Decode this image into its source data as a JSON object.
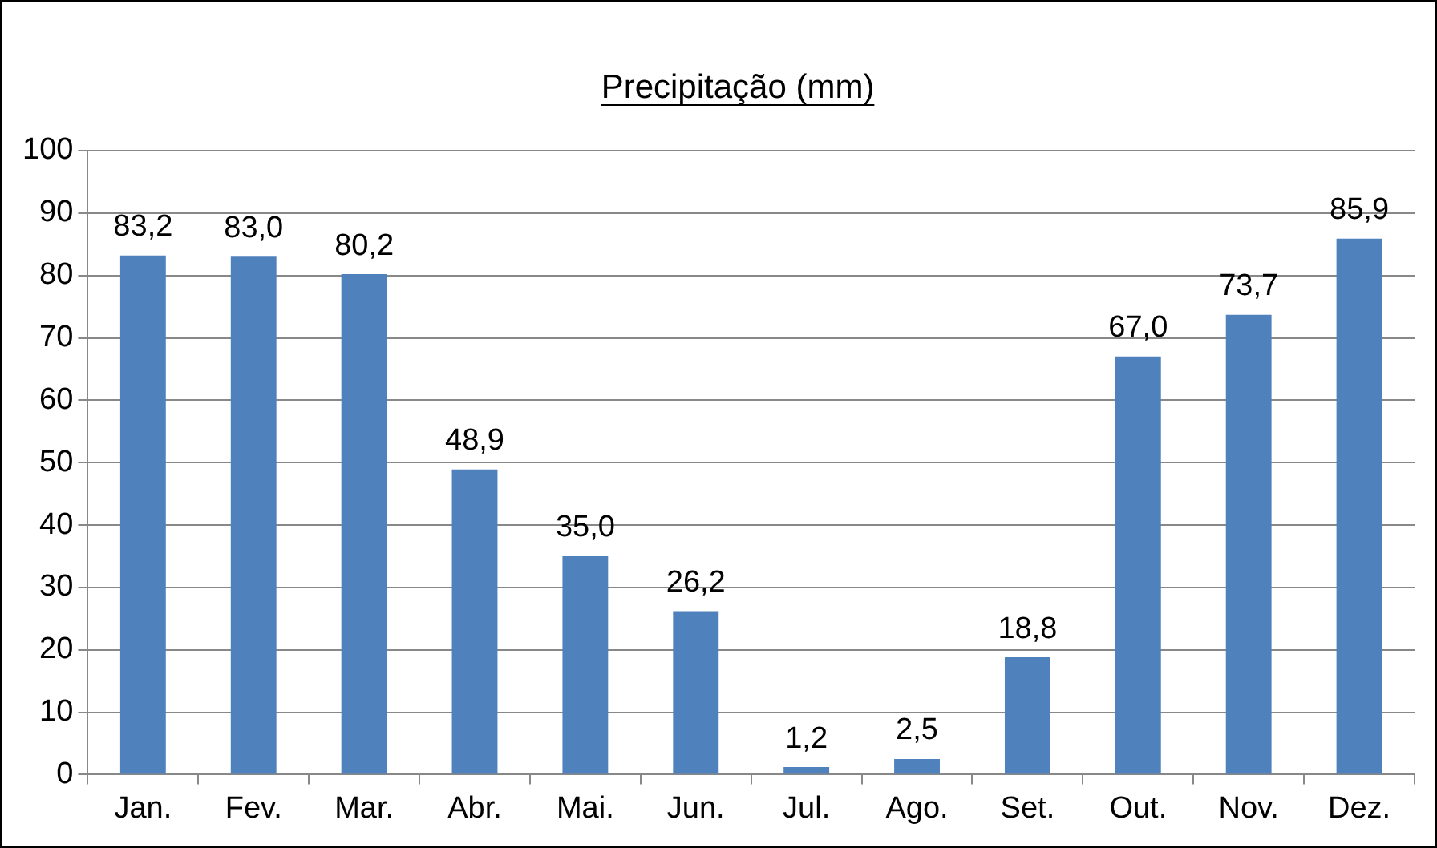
{
  "chart_data": {
    "type": "bar",
    "title": "Precipitação (mm)",
    "categories": [
      "Jan.",
      "Fev.",
      "Mar.",
      "Abr.",
      "Mai.",
      "Jun.",
      "Jul.",
      "Ago.",
      "Set.",
      "Out.",
      "Nov.",
      "Dez."
    ],
    "values": [
      83.2,
      83.0,
      80.2,
      48.9,
      35.0,
      26.2,
      1.2,
      2.5,
      18.8,
      67.0,
      73.7,
      85.9
    ],
    "value_labels": [
      "83,2",
      "83,0",
      "80,2",
      "48,9",
      "35,0",
      "26,2",
      "1,2",
      "2,5",
      "18,8",
      "67,0",
      "73,7",
      "85,9"
    ],
    "color": "#4f81bd",
    "ylim": [
      0,
      100
    ],
    "yticks": [
      0,
      10,
      20,
      30,
      40,
      50,
      60,
      70,
      80,
      90,
      100
    ],
    "grid": "y",
    "legend": false
  }
}
